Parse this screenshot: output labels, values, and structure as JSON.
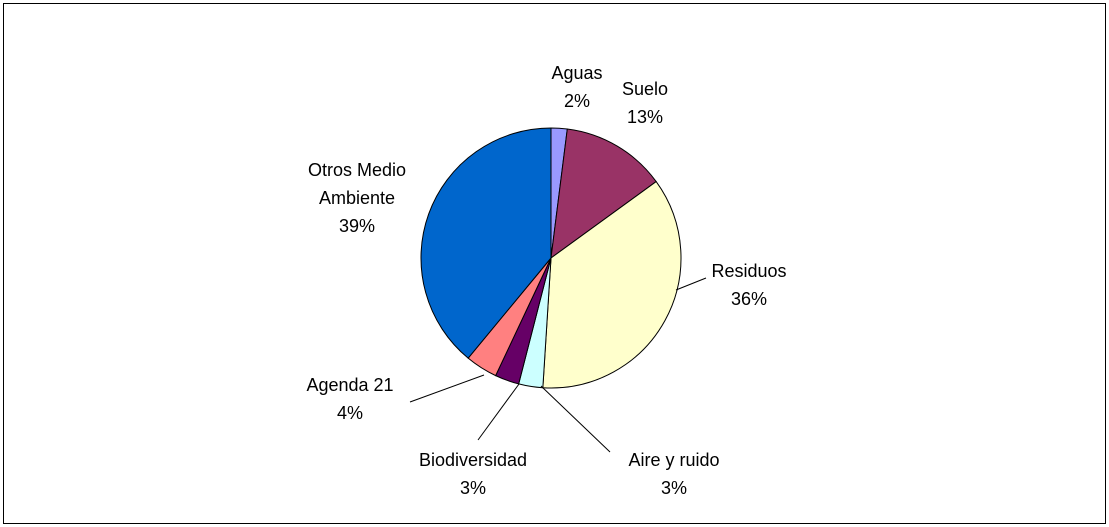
{
  "chart_data": {
    "type": "pie",
    "categories": [
      "Aguas",
      "Suelo",
      "Residuos",
      "Aire y ruido",
      "Biodiversidad",
      "Agenda 21",
      "Otros Medio Ambiente"
    ],
    "values": [
      2,
      13,
      36,
      3,
      3,
      4,
      39
    ],
    "value_labels": [
      "2%",
      "13%",
      "36%",
      "3%",
      "3%",
      "4%",
      "39%"
    ],
    "colors": [
      "#9999ff",
      "#993366",
      "#ffffcc",
      "#ccffff",
      "#660066",
      "#ff8080",
      "#0066cc"
    ]
  }
}
